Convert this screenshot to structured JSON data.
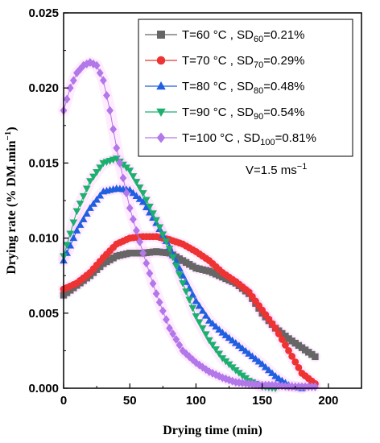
{
  "chart_data": {
    "type": "scatter",
    "xlabel": "Drying time (min)",
    "ylabel": "Drying rate (% DM.min",
    "ylabel_sup": "−1",
    "ylabel_close": ")",
    "xlim": [
      0,
      225
    ],
    "ylim": [
      0,
      0.025
    ],
    "x_ticks": [
      0,
      50,
      100,
      150,
      200
    ],
    "x_tick_labels": [
      "0",
      "50",
      "100",
      "150",
      "200"
    ],
    "y_ticks": [
      0,
      0.005,
      0.01,
      0.015,
      0.02,
      0.025
    ],
    "y_tick_labels": [
      "0.000",
      "0.005",
      "0.010",
      "0.015",
      "0.020",
      "0.025"
    ],
    "annotation": {
      "main": "V=1.5 ms",
      "sup": "−1"
    },
    "legend_position": "top-right",
    "series": [
      {
        "name": "T=60 °C , SD60=0.21%",
        "legend_main": "T=60 °C , SD",
        "legend_sub": "60",
        "legend_tail": "=0.21%",
        "color": "#666666",
        "marker": "square",
        "x_max": 190,
        "points": [
          [
            0,
            0.0062
          ],
          [
            20,
            0.0075
          ],
          [
            30,
            0.0083
          ],
          [
            40,
            0.0088
          ],
          [
            50,
            0.009
          ],
          [
            60,
            0.009
          ],
          [
            70,
            0.0091
          ],
          [
            80,
            0.009
          ],
          [
            90,
            0.0085
          ],
          [
            100,
            0.008
          ],
          [
            110,
            0.0078
          ],
          [
            120,
            0.0074
          ],
          [
            130,
            0.007
          ],
          [
            140,
            0.0063
          ],
          [
            150,
            0.005
          ],
          [
            160,
            0.004
          ],
          [
            170,
            0.0033
          ],
          [
            180,
            0.0027
          ],
          [
            190,
            0.0021
          ]
        ]
      },
      {
        "name": "T=70 °C , SD70=0.29%",
        "legend_main": "T=70 °C , SD",
        "legend_sub": "70",
        "legend_tail": "=0.29%",
        "color": "#ee3333",
        "marker": "circle",
        "x_max": 190,
        "points": [
          [
            0,
            0.0066
          ],
          [
            10,
            0.007
          ],
          [
            20,
            0.0077
          ],
          [
            30,
            0.0087
          ],
          [
            40,
            0.0096
          ],
          [
            50,
            0.01
          ],
          [
            60,
            0.0101
          ],
          [
            70,
            0.0101
          ],
          [
            80,
            0.0099
          ],
          [
            90,
            0.0096
          ],
          [
            100,
            0.0091
          ],
          [
            110,
            0.0085
          ],
          [
            120,
            0.0077
          ],
          [
            130,
            0.0071
          ],
          [
            140,
            0.0064
          ],
          [
            150,
            0.0052
          ],
          [
            160,
            0.004
          ],
          [
            170,
            0.0025
          ],
          [
            180,
            0.001
          ],
          [
            190,
            0.0003
          ]
        ]
      },
      {
        "name": "T=80 °C , SD80=0.48%",
        "legend_main": "T=80 °C , SD",
        "legend_sub": "80",
        "legend_tail": "=0.48%",
        "color": "#1f5fe0",
        "marker": "triangle-up",
        "x_max": 180,
        "points": [
          [
            0,
            0.0085
          ],
          [
            10,
            0.0105
          ],
          [
            20,
            0.012
          ],
          [
            30,
            0.0131
          ],
          [
            40,
            0.0133
          ],
          [
            50,
            0.0132
          ],
          [
            60,
            0.0124
          ],
          [
            70,
            0.011
          ],
          [
            80,
            0.0094
          ],
          [
            90,
            0.0075
          ],
          [
            100,
            0.0058
          ],
          [
            110,
            0.0045
          ],
          [
            120,
            0.0037
          ],
          [
            130,
            0.003
          ],
          [
            140,
            0.0023
          ],
          [
            150,
            0.0016
          ],
          [
            160,
            0.0008
          ],
          [
            170,
            0.0002
          ],
          [
            180,
            0.0
          ]
        ]
      },
      {
        "name": "T=90 °C , SD90=0.54%",
        "legend_main": "T=90 °C , SD",
        "legend_sub": "90",
        "legend_tail": "=0.54%",
        "color": "#1bb06e",
        "marker": "triangle-down",
        "x_max": 160,
        "points": [
          [
            0,
            0.0088
          ],
          [
            10,
            0.0118
          ],
          [
            20,
            0.0138
          ],
          [
            30,
            0.015
          ],
          [
            40,
            0.0153
          ],
          [
            50,
            0.0145
          ],
          [
            60,
            0.013
          ],
          [
            70,
            0.0112
          ],
          [
            80,
            0.0093
          ],
          [
            90,
            0.007
          ],
          [
            100,
            0.0048
          ],
          [
            110,
            0.0032
          ],
          [
            120,
            0.002
          ],
          [
            130,
            0.0012
          ],
          [
            140,
            0.0005
          ],
          [
            150,
            0.0001
          ],
          [
            160,
            0.0
          ]
        ]
      },
      {
        "name": "T=100 °C , SD100=0.81%",
        "legend_main": "T=100 °C , SD",
        "legend_sub": "100",
        "legend_tail": "=0.81%",
        "color": "#b277e8",
        "marker": "diamond",
        "x_max": 190,
        "points": [
          [
            0,
            0.0185
          ],
          [
            5,
            0.02
          ],
          [
            10,
            0.021
          ],
          [
            15,
            0.0215
          ],
          [
            20,
            0.0217
          ],
          [
            25,
            0.0215
          ],
          [
            30,
            0.0205
          ],
          [
            35,
            0.0185
          ],
          [
            40,
            0.016
          ],
          [
            50,
            0.012
          ],
          [
            60,
            0.009
          ],
          [
            70,
            0.0063
          ],
          [
            80,
            0.004
          ],
          [
            90,
            0.0025
          ],
          [
            100,
            0.0017
          ],
          [
            110,
            0.0011
          ],
          [
            120,
            0.0007
          ],
          [
            130,
            0.0004
          ],
          [
            140,
            0.0003
          ],
          [
            150,
            0.0002
          ],
          [
            160,
            0.0002
          ],
          [
            170,
            0.0001
          ],
          [
            180,
            0.0001
          ],
          [
            190,
            0.0001
          ]
        ]
      }
    ]
  }
}
